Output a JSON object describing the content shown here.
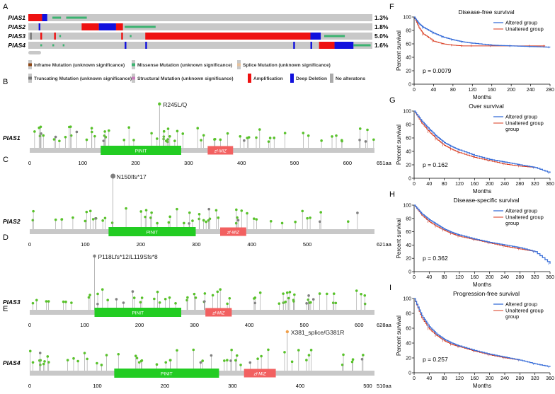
{
  "panels": {
    "A": "A",
    "B": "B",
    "C": "C",
    "D": "D",
    "E": "E",
    "F": "F",
    "G": "G",
    "H": "H",
    "I": "I"
  },
  "oncoprint": {
    "genes": [
      {
        "name": "PIAS1",
        "pct": "1.3%"
      },
      {
        "name": "PIAS2",
        "pct": "1.8%"
      },
      {
        "name": "PIAS3",
        "pct": "5.0%"
      },
      {
        "name": "PIAS4",
        "pct": "1.6%"
      }
    ],
    "legend": [
      {
        "label": "Inframe Mutation (unknown significance)",
        "color": "#8b4513"
      },
      {
        "label": "Missense Mutation (unknown significance)",
        "color": "#3cb371"
      },
      {
        "label": "Splice Mutation (unknown significance)",
        "color": "#e8c39e"
      },
      {
        "label": "Truncating Mutation (unknown significance)",
        "color": "#777777"
      },
      {
        "label": "Structural Mutation (unknown significance)",
        "color": "#c77dba"
      },
      {
        "label": "Amplification",
        "color": "#ee1111"
      },
      {
        "label": "Deep Deletion",
        "color": "#1111dd"
      },
      {
        "label": "No alteratons",
        "color": "#aaaaaa"
      }
    ]
  },
  "lollipops": [
    {
      "gene": "PIAS1",
      "length": 651,
      "length_label": "651aa",
      "domains": [
        {
          "name": "PINIT",
          "start": 134,
          "end": 286,
          "color": "#22cc22"
        },
        {
          "name": "zf-MIZ",
          "start": 336,
          "end": 384,
          "color": "#f26060"
        }
      ],
      "ticks": [
        0,
        100,
        200,
        300,
        400,
        500,
        600
      ],
      "annotation": "R245L/Q",
      "annot_pos": 245
    },
    {
      "gene": "PIAS2",
      "length": 621,
      "length_label": "621aa",
      "domains": [
        {
          "name": "PINIT",
          "start": 142,
          "end": 299,
          "color": "#22cc22"
        },
        {
          "name": "zf-MIZ",
          "start": 343,
          "end": 390,
          "color": "#f26060"
        }
      ],
      "ticks": [
        0,
        100,
        200,
        300,
        400,
        500
      ],
      "annotation": "N150Ifs*17",
      "annot_pos": 150
    },
    {
      "gene": "PIAS3",
      "length": 628,
      "length_label": "628aa",
      "domains": [
        {
          "name": "PINIT",
          "start": 118,
          "end": 276,
          "color": "#22cc22"
        },
        {
          "name": "zf-MIZ",
          "start": 320,
          "end": 368,
          "color": "#f26060"
        }
      ],
      "ticks": [
        0,
        100,
        200,
        300,
        400,
        500,
        600
      ],
      "annotation": "P118Lfs*12/L119Sfs*8",
      "annot_pos": 118
    },
    {
      "gene": "PIAS4",
      "length": 510,
      "length_label": "510aa",
      "domains": [
        {
          "name": "PINIT",
          "start": 125,
          "end": 280,
          "color": "#22cc22"
        },
        {
          "name": "zf-MIZ",
          "start": 317,
          "end": 364,
          "color": "#f26060"
        }
      ],
      "ticks": [
        0,
        100,
        200,
        300,
        400,
        500
      ],
      "annotation": "X381_splice/G381R",
      "annot_pos": 381
    }
  ],
  "survival": [
    {
      "title": "Disease-free survival",
      "p": "p = 0.0079",
      "xmax": 280,
      "xticks": [
        0,
        40,
        80,
        120,
        160,
        200,
        240,
        280
      ],
      "xlabel": "Months",
      "ylabel": "Percent survival",
      "yticks": [
        0,
        20,
        40,
        60,
        80,
        100
      ],
      "legend": [
        "Altered group",
        "Unaltered group"
      ],
      "altered": [
        [
          0,
          100
        ],
        [
          10,
          90
        ],
        [
          20,
          84
        ],
        [
          40,
          76
        ],
        [
          60,
          70
        ],
        [
          80,
          66
        ],
        [
          100,
          63
        ],
        [
          120,
          61
        ],
        [
          160,
          58
        ],
        [
          200,
          57
        ],
        [
          240,
          56
        ],
        [
          280,
          55
        ]
      ],
      "unaltered": [
        [
          0,
          100
        ],
        [
          10,
          84
        ],
        [
          20,
          74
        ],
        [
          40,
          64
        ],
        [
          60,
          60
        ],
        [
          80,
          58
        ],
        [
          100,
          57
        ],
        [
          120,
          57
        ],
        [
          160,
          57
        ],
        [
          200,
          57
        ],
        [
          240,
          57
        ],
        [
          270,
          57
        ]
      ]
    },
    {
      "title": "Over survival",
      "p": "p = 0.162",
      "xmax": 360,
      "xticks": [
        0,
        40,
        80,
        120,
        160,
        200,
        240,
        280,
        320,
        360
      ],
      "xlabel": "Months",
      "ylabel": "Percent survival",
      "yticks": [
        0,
        20,
        40,
        60,
        80,
        100
      ],
      "legend": [
        "Altered group",
        "Unaltered group"
      ],
      "altered": [
        [
          0,
          100
        ],
        [
          20,
          85
        ],
        [
          40,
          73
        ],
        [
          60,
          62
        ],
        [
          80,
          53
        ],
        [
          100,
          47
        ],
        [
          120,
          42
        ],
        [
          160,
          34
        ],
        [
          200,
          28
        ],
        [
          240,
          24
        ],
        [
          280,
          20
        ],
        [
          320,
          16
        ],
        [
          360,
          8
        ]
      ],
      "unaltered": [
        [
          0,
          100
        ],
        [
          20,
          82
        ],
        [
          40,
          69
        ],
        [
          60,
          58
        ],
        [
          80,
          49
        ],
        [
          100,
          43
        ],
        [
          120,
          38
        ],
        [
          160,
          31
        ],
        [
          200,
          26
        ],
        [
          240,
          21
        ],
        [
          280,
          18
        ],
        [
          320,
          16
        ]
      ]
    },
    {
      "title": "Disease-specific survival",
      "p": "p = 0.362",
      "xmax": 360,
      "xticks": [
        0,
        40,
        80,
        120,
        160,
        200,
        240,
        280,
        320,
        360
      ],
      "xlabel": "Months",
      "ylabel": "Percent survival",
      "yticks": [
        0,
        20,
        40,
        60,
        80,
        100
      ],
      "legend": [
        "Altered group",
        "Unaltered group"
      ],
      "altered": [
        [
          0,
          100
        ],
        [
          20,
          87
        ],
        [
          40,
          78
        ],
        [
          60,
          71
        ],
        [
          80,
          64
        ],
        [
          100,
          59
        ],
        [
          120,
          55
        ],
        [
          160,
          49
        ],
        [
          200,
          44
        ],
        [
          240,
          40
        ],
        [
          280,
          36
        ],
        [
          320,
          30
        ],
        [
          360,
          12
        ]
      ],
      "unaltered": [
        [
          0,
          100
        ],
        [
          20,
          85
        ],
        [
          40,
          75
        ],
        [
          60,
          68
        ],
        [
          80,
          62
        ],
        [
          100,
          57
        ],
        [
          120,
          53
        ],
        [
          160,
          48
        ],
        [
          200,
          43
        ],
        [
          240,
          38
        ],
        [
          280,
          34
        ],
        [
          320,
          30
        ]
      ]
    },
    {
      "title": "Progression-free survival",
      "p": "p = 0.257",
      "xmax": 360,
      "xticks": [
        0,
        40,
        80,
        120,
        160,
        200,
        240,
        280,
        320,
        360
      ],
      "xlabel": "Months",
      "ylabel": "Percent survival",
      "yticks": [
        0,
        20,
        40,
        60,
        80,
        100
      ],
      "legend": [
        "Altered group",
        "Unaltered group",
        "group"
      ],
      "altered": [
        [
          0,
          100
        ],
        [
          20,
          77
        ],
        [
          40,
          62
        ],
        [
          60,
          52
        ],
        [
          80,
          45
        ],
        [
          100,
          40
        ],
        [
          120,
          36
        ],
        [
          160,
          30
        ],
        [
          200,
          25
        ],
        [
          240,
          21
        ],
        [
          280,
          17
        ],
        [
          320,
          12
        ],
        [
          360,
          8
        ]
      ],
      "unaltered": [
        [
          0,
          100
        ],
        [
          20,
          74
        ],
        [
          40,
          59
        ],
        [
          60,
          50
        ],
        [
          80,
          43
        ],
        [
          100,
          38
        ],
        [
          120,
          35
        ],
        [
          160,
          29
        ],
        [
          200,
          24
        ],
        [
          240,
          20
        ],
        [
          280,
          17
        ]
      ]
    }
  ]
}
